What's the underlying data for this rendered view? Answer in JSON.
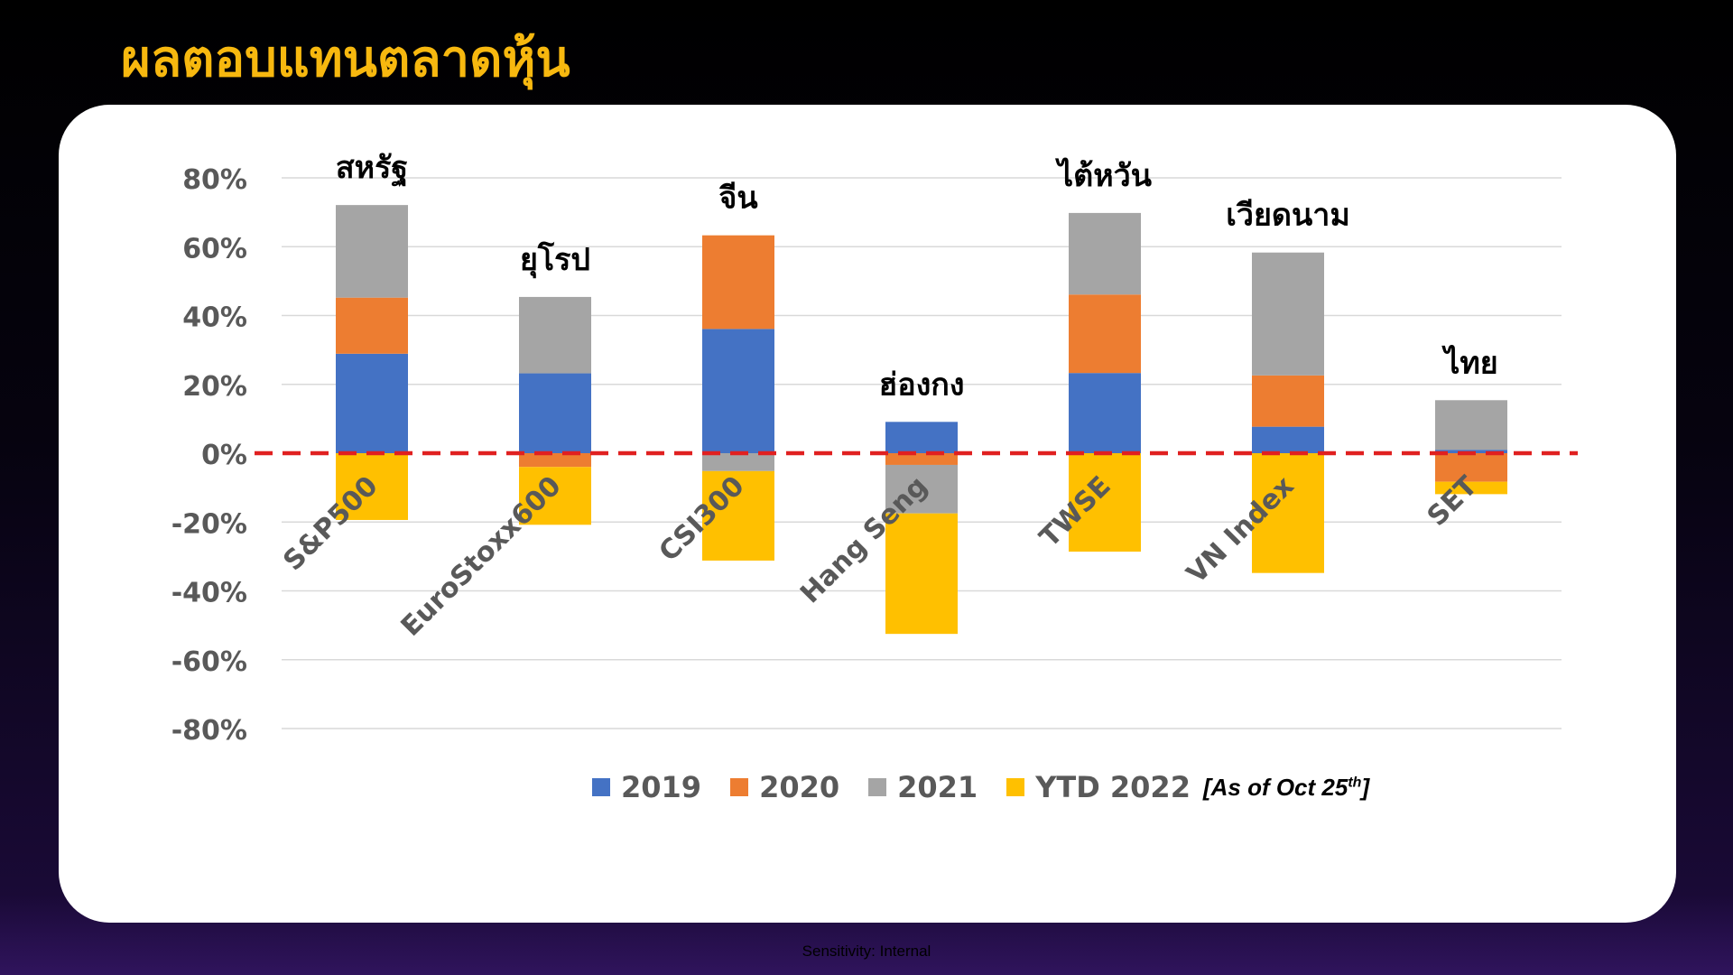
{
  "slide": {
    "title": "ผลตอบแทนตลาดหุ้น",
    "footer": "Sensitivity: Internal"
  },
  "chart_data": {
    "type": "bar",
    "stacked": true,
    "categories": [
      "S&P500",
      "EuroStoxx600",
      "CSI300",
      "Hang Seng",
      "TWSE",
      "VN Index",
      "SET"
    ],
    "category_labels_th": [
      "สหรัฐ",
      "ยุโรป",
      "จีน",
      "ฮ่องกง",
      "ไต้หวัน",
      "เวียดนาม",
      "ไทย"
    ],
    "series": [
      {
        "name": "2019",
        "color": "#4472c4",
        "values": [
          28.9,
          23.2,
          36.1,
          9.1,
          23.3,
          7.7,
          1.0
        ]
      },
      {
        "name": "2020",
        "color": "#ed7d31",
        "values": [
          16.3,
          -4.0,
          27.2,
          -3.4,
          22.8,
          14.9,
          -8.3
        ]
      },
      {
        "name": "2021",
        "color": "#a5a5a5",
        "values": [
          26.9,
          22.2,
          -5.2,
          -14.1,
          23.7,
          35.7,
          14.4
        ]
      },
      {
        "name": "YTD 2022",
        "color": "#ffc000",
        "values": [
          -19.4,
          -16.8,
          -26.0,
          -35.0,
          -28.6,
          -34.8,
          -3.6
        ]
      }
    ],
    "ylim": [
      -80,
      80
    ],
    "yticks": [
      80,
      60,
      40,
      20,
      0,
      -20,
      -40,
      -60,
      -80
    ],
    "ytick_labels": [
      "80%",
      "60%",
      "40%",
      "20%",
      "0%",
      "-20%",
      "-40%",
      "-60%",
      "-80%"
    ],
    "zero_line": {
      "style": "dashed",
      "color": "#e02020"
    },
    "grid": true,
    "legend": {
      "placement": "bottom",
      "note": "[As of Oct 25",
      "note_sup": "th",
      "note_end": "]"
    },
    "title": "",
    "xlabel": "",
    "ylabel": ""
  }
}
